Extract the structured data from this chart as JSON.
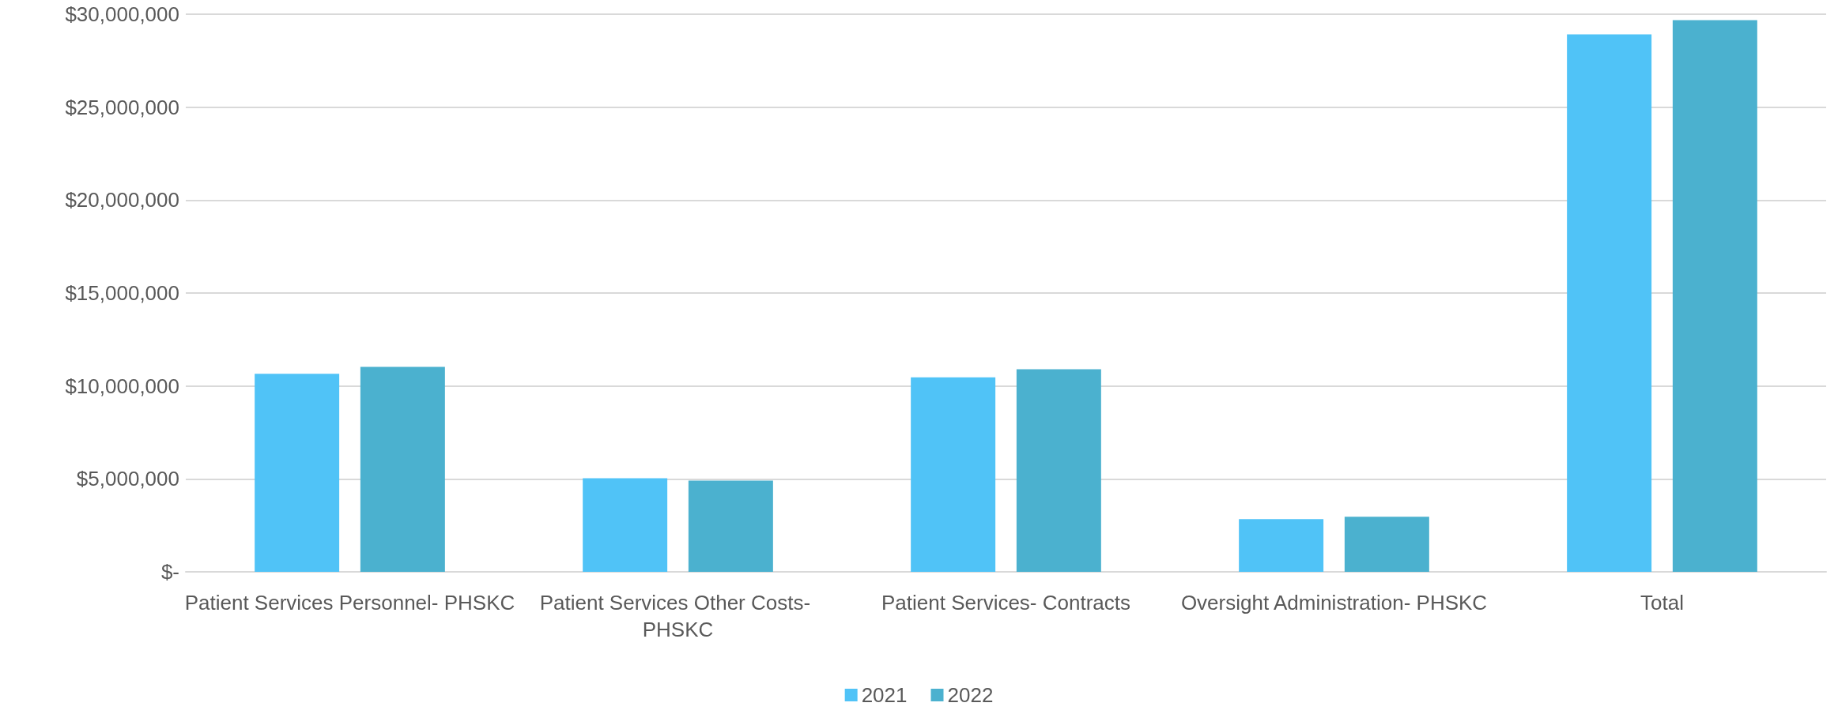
{
  "chart_data": {
    "type": "bar",
    "categories": [
      "Patient Services Personnel- PHSKC",
      "Patient Services Other Costs- PHSKC",
      "Patient Services- Contracts",
      "Oversight Administration- PHSKC",
      "Total"
    ],
    "series": [
      {
        "name": "2021",
        "color": "#50c3f7",
        "values": [
          10650000,
          5040000,
          10460000,
          2840000,
          28920000
        ]
      },
      {
        "name": "2022",
        "color": "#4bb1cf",
        "values": [
          11030000,
          4910000,
          10900000,
          2960000,
          29680000
        ]
      }
    ],
    "ylim": [
      0,
      30000000
    ],
    "yticks": [
      {
        "value": 0,
        "label": "$-"
      },
      {
        "value": 5000000,
        "label": "$5,000,000"
      },
      {
        "value": 10000000,
        "label": "$10,000,000"
      },
      {
        "value": 15000000,
        "label": "$15,000,000"
      },
      {
        "value": 20000000,
        "label": "$20,000,000"
      },
      {
        "value": 25000000,
        "label": "$25,000,000"
      },
      {
        "value": 30000000,
        "label": "$30,000,000"
      }
    ],
    "grid": "y",
    "legend": "bottom"
  }
}
